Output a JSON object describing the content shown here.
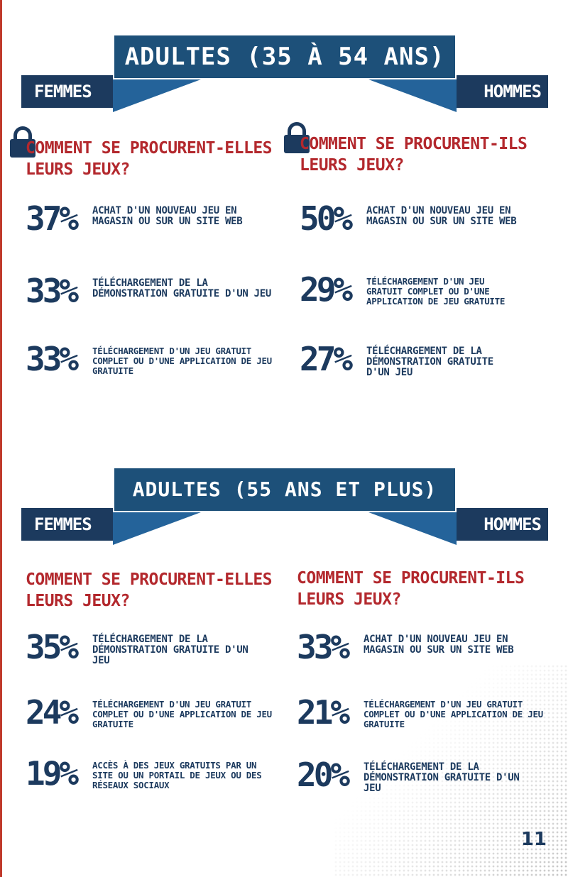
{
  "section1": {
    "title": "ADULTES (35 À 54 ANS)",
    "women_label": "FEMMES",
    "men_label": "HOMMES",
    "women": {
      "question": "COMMENT SE PROCURENT-ELLES LEURS JEUX?",
      "stats": [
        {
          "percent": "37%",
          "text": "ACHAT D'UN NOUVEAU JEU EN MAGASIN OU SUR UN SITE WEB"
        },
        {
          "percent": "33%",
          "text": "TÉLÉCHARGEMENT DE LA DÉMONSTRATION GRATUITE D'UN JEU"
        },
        {
          "percent": "33%",
          "text": "TÉLÉCHARGEMENT D'UN JEU GRATUIT COMPLET OU D'UNE APPLICATION DE JEU GRATUITE"
        }
      ]
    },
    "men": {
      "question": "COMMENT SE PROCURENT-ILS LEURS JEUX?",
      "stats": [
        {
          "percent": "50%",
          "text": "ACHAT D'UN NOUVEAU JEU EN MAGASIN OU SUR UN SITE WEB"
        },
        {
          "percent": "29%",
          "text": "TÉLÉCHARGEMENT D'UN JEU GRATUIT COMPLET OU D'UNE APPLICATION DE JEU GRATUITE"
        },
        {
          "percent": "27%",
          "text": "TÉLÉCHARGEMENT DE LA DÉMONSTRATION GRATUITE D'UN JEU"
        }
      ]
    }
  },
  "section2": {
    "title": "ADULTES (55 ANS ET PLUS)",
    "women_label": "FEMMES",
    "men_label": "HOMMES",
    "women": {
      "question": "COMMENT SE PROCURENT-ELLES LEURS JEUX?",
      "stats": [
        {
          "percent": "35%",
          "text": "TÉLÉCHARGEMENT DE LA DÉMONSTRATION GRATUITE D'UN JEU"
        },
        {
          "percent": "24%",
          "text": "TÉLÉCHARGEMENT D'UN JEU GRATUIT COMPLET OU D'UNE APPLICATION DE JEU GRATUITE"
        },
        {
          "percent": "19%",
          "text": "ACCÈS À DES JEUX GRATUITS PAR UN SITE OU UN PORTAIL DE JEUX OU DES RÉSEAUX SOCIAUX"
        }
      ]
    },
    "men": {
      "question": "COMMENT SE PROCURENT-ILS LEURS JEUX?",
      "stats": [
        {
          "percent": "33%",
          "text": "ACHAT D'UN NOUVEAU JEU EN MAGASIN OU SUR UN SITE WEB"
        },
        {
          "percent": "21%",
          "text": "TÉLÉCHARGEMENT D'UN JEU GRATUIT COMPLET OU D'UNE APPLICATION DE JEU GRATUITE"
        },
        {
          "percent": "20%",
          "text": "TÉLÉCHARGEMENT DE LA DÉMONSTRATION GRATUITE D'UN JEU"
        }
      ]
    }
  },
  "page_number": "11",
  "colors": {
    "navy": "#1c3a5e",
    "blue": "#1d5079",
    "red": "#b3282d"
  },
  "icons": [
    "lock-icon"
  ]
}
